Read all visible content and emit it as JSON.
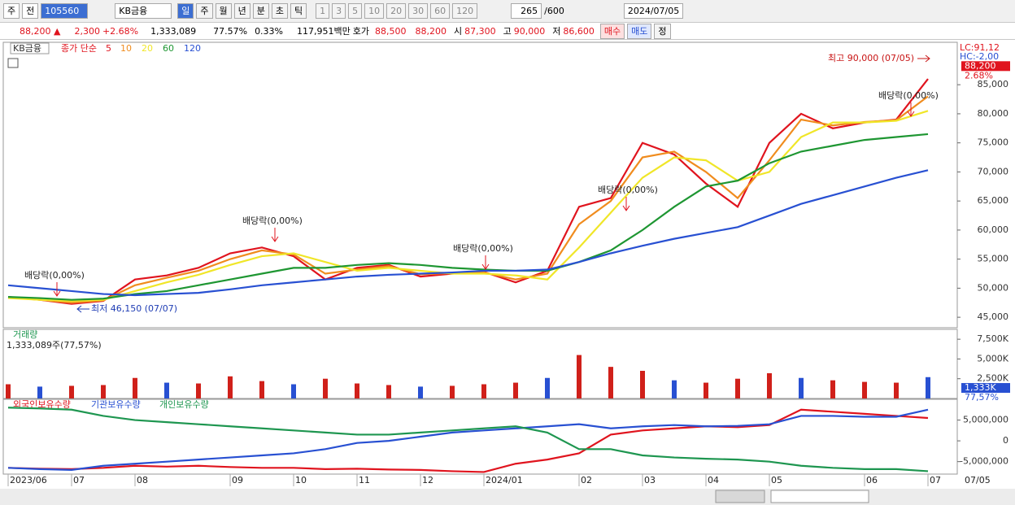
{
  "toolbar": {
    "market": "주",
    "range": "전",
    "code": "105560",
    "name": "KB금융",
    "periods": [
      "일",
      "주",
      "월",
      "년",
      "분",
      "초",
      "틱"
    ],
    "intervals": [
      "1",
      "3",
      "5",
      "10",
      "20",
      "30",
      "60",
      "120"
    ],
    "count": "265",
    "max": "/600",
    "date": "2024/07/05"
  },
  "quote": {
    "price": "88,200 ▲",
    "change": "2,300",
    "pct": "+2.68%",
    "volume": "1,333,089",
    "volume_ratio": "77.57%",
    "turnover": "0.33%",
    "amount": "117,951백만",
    "ask_label": "호가",
    "ask": "88,500",
    "bid": "88,200",
    "open_label": "시",
    "open": "87,300",
    "high_label": "고",
    "high": "90,000",
    "low_label": "저",
    "low": "86,600",
    "buttons": [
      "매수",
      "매도",
      "정"
    ]
  },
  "chart_data": [
    {
      "type": "line",
      "title": "KB금융",
      "legend_prefix": "종가 단순",
      "categories": [
        "2023/06",
        null,
        "07",
        null,
        "08",
        null,
        null,
        "09",
        null,
        "10",
        null,
        "11",
        null,
        "12",
        null,
        "2024/01",
        null,
        null,
        "02",
        null,
        "03",
        null,
        "04",
        null,
        "05",
        null,
        null,
        "06",
        null,
        "07"
      ],
      "series": [
        {
          "name": "5",
          "color": "#e0141e",
          "values": [
            48500,
            48000,
            47300,
            47800,
            51500,
            52200,
            53500,
            56000,
            57000,
            55500,
            51500,
            53500,
            54000,
            52000,
            52500,
            52800,
            51000,
            53000,
            64000,
            65500,
            75000,
            73000,
            68000,
            64000,
            75000,
            80000,
            77500,
            78500,
            79000,
            86000
          ]
        },
        {
          "name": "10",
          "color": "#f08c1e",
          "values": [
            48400,
            48000,
            47500,
            47900,
            50500,
            51800,
            53000,
            55000,
            56500,
            55800,
            52500,
            53200,
            53800,
            52400,
            52600,
            52700,
            51500,
            52500,
            61000,
            65000,
            72500,
            73500,
            70000,
            65500,
            72000,
            79000,
            78000,
            78600,
            78900,
            83000
          ]
        },
        {
          "name": "20",
          "color": "#f0e628",
          "values": [
            48300,
            48000,
            47800,
            48000,
            49500,
            51000,
            52300,
            54000,
            55500,
            56000,
            54500,
            53000,
            53500,
            53000,
            52500,
            52500,
            52200,
            51500,
            57000,
            63000,
            69000,
            72500,
            72000,
            68500,
            70000,
            76000,
            78500,
            78500,
            78800,
            80500
          ]
        },
        {
          "name": "60",
          "color": "#1e9632",
          "values": [
            48500,
            48300,
            48000,
            48200,
            49000,
            49500,
            50500,
            51500,
            52500,
            53500,
            53500,
            54000,
            54300,
            54000,
            53500,
            53200,
            53000,
            53000,
            54500,
            56500,
            60000,
            64000,
            67500,
            68500,
            71500,
            73500,
            74500,
            75500,
            76000,
            76500
          ]
        },
        {
          "name": "120",
          "color": "#2850d2",
          "values": [
            50500,
            50000,
            49500,
            49000,
            48800,
            49000,
            49200,
            49800,
            50500,
            51000,
            51500,
            52000,
            52300,
            52500,
            52700,
            53000,
            53000,
            53200,
            54500,
            56000,
            57300,
            58500,
            59500,
            60500,
            62500,
            64500,
            66000,
            67500,
            69000,
            70300
          ]
        }
      ],
      "ylim": [
        43200,
        92300
      ],
      "yticks": [
        {
          "value": 45000,
          "label": "45,000"
        },
        {
          "value": 50000,
          "label": "50,000"
        },
        {
          "value": 55000,
          "label": "55,000"
        },
        {
          "value": 60000,
          "label": "60,000"
        },
        {
          "value": 65000,
          "label": "65,000"
        },
        {
          "value": 70000,
          "label": "70,000"
        },
        {
          "value": 75000,
          "label": "75,000"
        },
        {
          "value": 80000,
          "label": "80,000"
        },
        {
          "value": 85000,
          "label": "85,000"
        }
      ],
      "annotations": [
        "배당락(0,00%)",
        "배당락(0,00%)",
        "배당락(0,00%)",
        "배당락(0,00%)",
        "배당락(0,00%)"
      ],
      "high_label": "최고 90,000 (07/05)",
      "low_label": "최저 46,150 (07/07)",
      "last_price": {
        "value": 88200,
        "label": "88,200"
      },
      "last_change": "2.68%",
      "lc_label": "LC:91,12",
      "hc_label": "HC:-2,00"
    },
    {
      "type": "bar",
      "title": "거래량",
      "subtitle": "1,333,089주(77,57%)",
      "color": "#d0201a",
      "values": [
        1800,
        1500,
        1600,
        1700,
        2600,
        2000,
        1900,
        2800,
        2200,
        1800,
        2500,
        1900,
        1700,
        1500,
        1600,
        1800,
        2000,
        2600,
        5500,
        4000,
        3500,
        2300,
        2000,
        2500,
        3200,
        2600,
        2300,
        2100,
        2000,
        2700
      ],
      "ylim": [
        0,
        8750
      ],
      "yticks": [
        {
          "value": 2500,
          "label": "2,500K"
        },
        {
          "value": 5000,
          "label": "5,000K"
        },
        {
          "value": 7500,
          "label": "7,500K"
        }
      ],
      "last_value": {
        "value": 1333,
        "label": "1,333K"
      },
      "last_ratio": "77,57%"
    },
    {
      "type": "line",
      "series": [
        {
          "name": "외국인보유수량",
          "color": "#e0141e",
          "values": [
            -6500000,
            -6700000,
            -6800000,
            -6500000,
            -6000000,
            -6200000,
            -6000000,
            -6300000,
            -6500000,
            -6500000,
            -6800000,
            -6700000,
            -6900000,
            -7000000,
            -7300000,
            -7500000,
            -5500000,
            -4500000,
            -3000000,
            1500000,
            2500000,
            3000000,
            3500000,
            3300000,
            3800000,
            7500000,
            7000000,
            6500000,
            6000000,
            5500000
          ]
        },
        {
          "name": "기관보유수량",
          "color": "#2850d2",
          "values": [
            -6500000,
            -6800000,
            -7000000,
            -6000000,
            -5500000,
            -5000000,
            -4500000,
            -4000000,
            -3500000,
            -3000000,
            -2000000,
            -500000,
            0,
            1000000,
            2000000,
            2500000,
            3000000,
            3500000,
            4000000,
            3000000,
            3500000,
            3800000,
            3500000,
            3600000,
            4000000,
            6000000,
            6000000,
            5800000,
            5800000,
            7500000
          ]
        },
        {
          "name": "개인보유수량",
          "color": "#1e9650",
          "values": [
            8000000,
            7800000,
            7500000,
            6000000,
            5000000,
            4500000,
            4000000,
            3500000,
            3000000,
            2500000,
            2000000,
            1500000,
            1500000,
            2000000,
            2500000,
            3000000,
            3500000,
            2000000,
            -2000000,
            -2000000,
            -3500000,
            -4000000,
            -4300000,
            -4500000,
            -5000000,
            -6000000,
            -6500000,
            -6800000,
            -6800000,
            -7300000
          ]
        }
      ],
      "ylim": [
        -8000000,
        10000000
      ],
      "yticks": [
        {
          "value": 5000000,
          "label": "5,000,000"
        },
        0,
        {
          "value": -5000000,
          "label": "-5,000,000"
        }
      ]
    }
  ],
  "x_end_label": "07/05"
}
